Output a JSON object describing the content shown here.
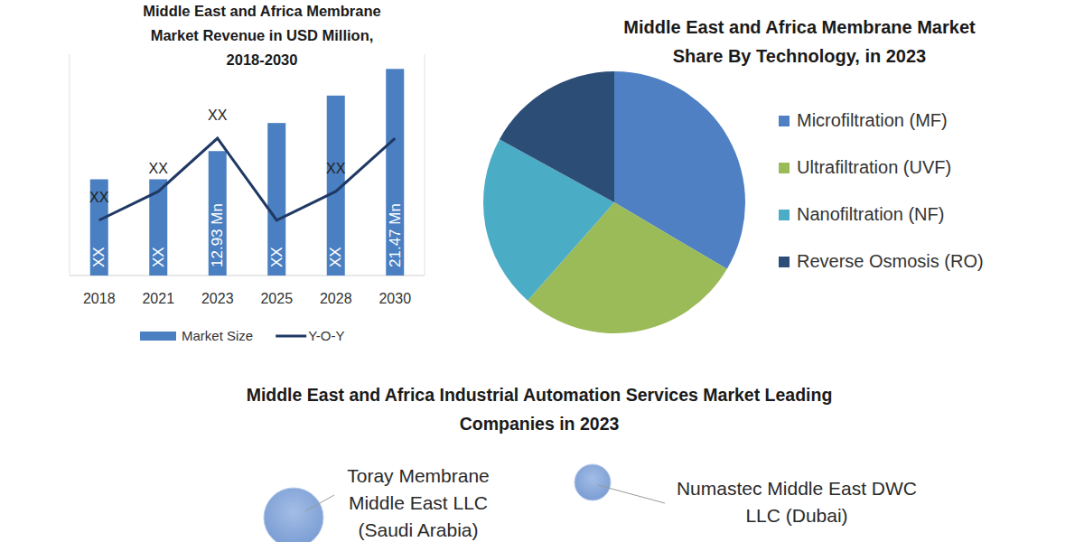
{
  "chart_data": [
    {
      "type": "bar",
      "title": "Middle East and Africa Membrane\nMarket Revenue in USD Million,\n2018-2030",
      "categories": [
        "2018",
        "2021",
        "2023",
        "2025",
        "2028",
        "2030"
      ],
      "series": [
        {
          "name": "Market Size",
          "type": "bar",
          "color": "#4a7fc1",
          "values": [
            10.0,
            10.0,
            12.93,
            15.85,
            18.7,
            21.47
          ],
          "value_labels": [
            "XX",
            "XX",
            "12.93 Mn",
            "XX",
            "XX",
            "21.47 Mn"
          ]
        },
        {
          "name": "Y-O-Y",
          "type": "line",
          "axis": "y2",
          "color": "#1f3864",
          "values": [
            2.5,
            3.8,
            6.2,
            2.5,
            3.8,
            6.2
          ],
          "value_labels": [
            "XX",
            "XX",
            "XX",
            null,
            "XX",
            null
          ]
        }
      ],
      "ylim": [
        0,
        23
      ],
      "y2lim": [
        0,
        10
      ],
      "tick_labels": "x",
      "data_labels": true,
      "legend": "bottom"
    },
    {
      "type": "pie",
      "title": "Middle East and Africa Membrane Market\nShare By Technology, in 2023",
      "categories": [
        "Microfiltration (MF)",
        "Ultrafiltration (UVF)",
        "Nanofiltration (NF)",
        "Reverse Osmosis (RO)"
      ],
      "values": [
        33.5,
        28,
        21.5,
        17
      ],
      "colors": [
        "#4e80c3",
        "#9bbb59",
        "#4bacc6",
        "#2c4d75"
      ],
      "legend": "right"
    }
  ],
  "leading_companies": {
    "title": "Middle East and Africa Industrial Automation Services Market Leading\nCompanies in 2023",
    "companies": [
      {
        "label": "Toray Membrane\nMiddle East LLC\n(Saudi Arabia)"
      },
      {
        "label": "Numastec Middle East DWC\nLLC (Dubai)"
      }
    ]
  }
}
